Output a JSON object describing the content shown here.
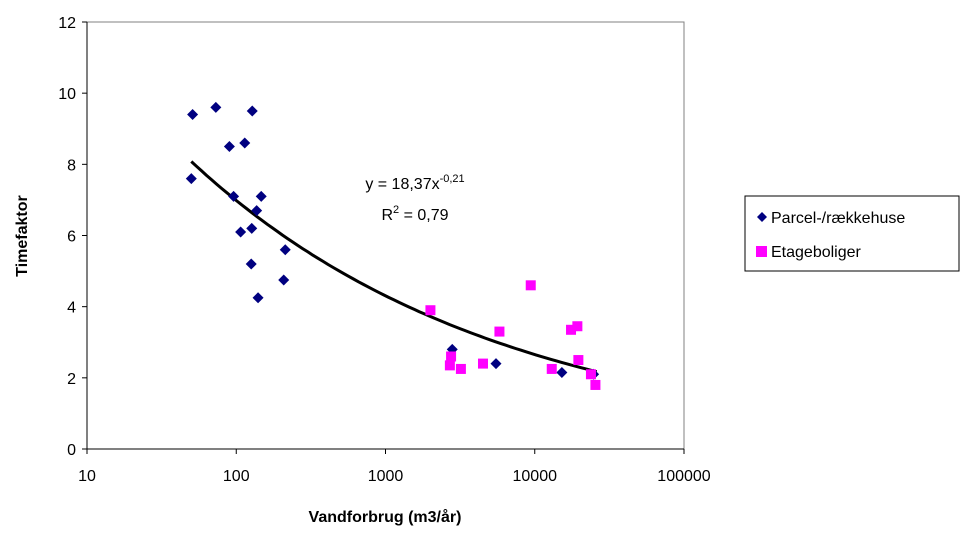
{
  "chart_data": {
    "type": "scatter",
    "title": "",
    "xlabel": "Vandforbrug (m3/år)",
    "ylabel": "Timefaktor",
    "x_scale": "log",
    "xlim": [
      10,
      100000
    ],
    "ylim": [
      0,
      12
    ],
    "x_ticks": [
      10,
      100,
      1000,
      10000,
      100000
    ],
    "x_tick_labels": [
      "10",
      "100",
      "1000",
      "10000",
      "100000"
    ],
    "y_ticks": [
      0,
      2,
      4,
      6,
      8,
      10,
      12
    ],
    "y_tick_labels": [
      "0",
      "2",
      "4",
      "6",
      "8",
      "10",
      "12"
    ],
    "grid": false,
    "legend_position": "right",
    "series": [
      {
        "name": "Parcel-/rækkehuse",
        "marker": "diamond",
        "color": "#000080",
        "points": [
          [
            50,
            7.6
          ],
          [
            51,
            9.4
          ],
          [
            73,
            9.6
          ],
          [
            90,
            8.5
          ],
          [
            96,
            7.1
          ],
          [
            107,
            6.1
          ],
          [
            114,
            8.6
          ],
          [
            126,
            5.2
          ],
          [
            127,
            6.2
          ],
          [
            128,
            9.5
          ],
          [
            137,
            6.7
          ],
          [
            140,
            4.25
          ],
          [
            147,
            7.1
          ],
          [
            208,
            4.75
          ],
          [
            213,
            5.6
          ],
          [
            2800,
            2.8
          ],
          [
            5500,
            2.4
          ],
          [
            15200,
            2.15
          ],
          [
            24800,
            2.1
          ]
        ]
      },
      {
        "name": "Etageboliger",
        "marker": "square",
        "color": "#ff00ff",
        "points": [
          [
            2000,
            3.9
          ],
          [
            2700,
            2.35
          ],
          [
            2750,
            2.6
          ],
          [
            3200,
            2.25
          ],
          [
            4500,
            2.4
          ],
          [
            5800,
            3.3
          ],
          [
            9400,
            4.6
          ],
          [
            13000,
            2.25
          ],
          [
            17500,
            3.35
          ],
          [
            19300,
            3.45
          ],
          [
            19600,
            2.5
          ],
          [
            23800,
            2.1
          ],
          [
            25500,
            1.8
          ]
        ]
      }
    ],
    "trendline": {
      "type": "power",
      "coefficient": 18.37,
      "exponent": -0.21,
      "x_range": [
        50,
        26000
      ],
      "color": "#000000"
    },
    "annotation": {
      "equation_prefix": "y = 18,37x",
      "equation_exponent": "-0,21",
      "r2_prefix": "R",
      "r2_exponent": "2",
      "r2_suffix": " = 0,79"
    }
  }
}
